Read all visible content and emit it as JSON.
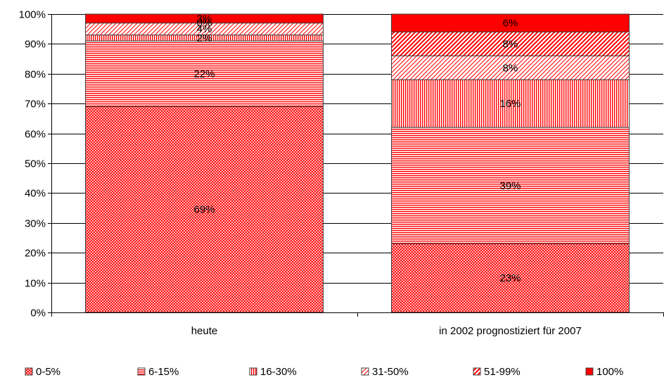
{
  "chart_data": {
    "type": "bar",
    "stacked": true,
    "categories": [
      "heute",
      "in 2002 prognostiziert für 2007"
    ],
    "series": [
      {
        "name": "0-5%",
        "values": [
          69,
          23
        ],
        "labels": [
          "69%",
          "23%"
        ],
        "pattern": "crosshatch"
      },
      {
        "name": "6-15%",
        "values": [
          22,
          39
        ],
        "labels": [
          "22%",
          "39%"
        ],
        "pattern": "horizontal"
      },
      {
        "name": "16-30%",
        "values": [
          2,
          16
        ],
        "labels": [
          "2%",
          "16%"
        ],
        "pattern": "vertical"
      },
      {
        "name": "31-50%",
        "values": [
          4,
          8
        ],
        "labels": [
          "4%",
          "8%"
        ],
        "pattern": "diag-light"
      },
      {
        "name": "51-99%",
        "values": [
          0,
          8
        ],
        "labels": [
          "0%",
          "8%"
        ],
        "pattern": "diag-bold"
      },
      {
        "name": "100%",
        "values": [
          3,
          6
        ],
        "labels": [
          "3%",
          "6%"
        ],
        "pattern": "solid"
      }
    ],
    "y_ticks": [
      "0%",
      "10%",
      "20%",
      "30%",
      "40%",
      "50%",
      "60%",
      "70%",
      "80%",
      "90%",
      "100%"
    ],
    "ylim": [
      0,
      100
    ],
    "grid": true,
    "legend_position": "bottom",
    "colors": {
      "accent": "#ff0000",
      "border": "#404040",
      "grid": "#000000"
    }
  }
}
